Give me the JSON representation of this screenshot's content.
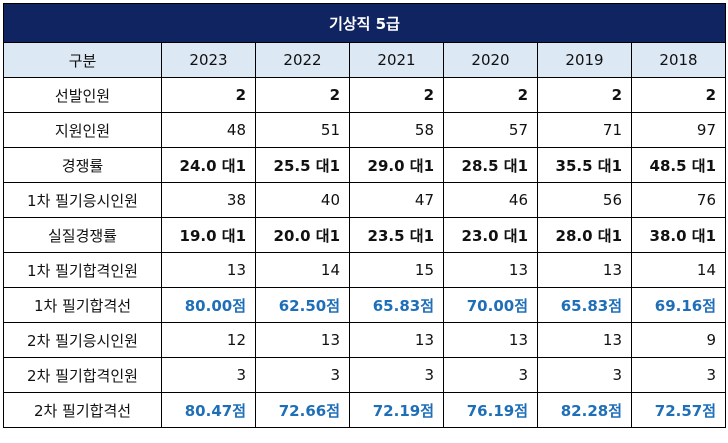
{
  "title": "기상직 5급",
  "header": {
    "label": "구분",
    "years": [
      "2023",
      "2022",
      "2021",
      "2020",
      "2019",
      "2018"
    ]
  },
  "rows": [
    {
      "label": "선발인원",
      "style": "bold",
      "values": [
        "2",
        "2",
        "2",
        "2",
        "2",
        "2"
      ]
    },
    {
      "label": "지원인원",
      "style": "plain",
      "values": [
        "48",
        "51",
        "58",
        "57",
        "71",
        "97"
      ]
    },
    {
      "label": "경쟁률",
      "style": "bold",
      "values": [
        "24.0 대1",
        "25.5 대1",
        "29.0 대1",
        "28.5 대1",
        "35.5 대1",
        "48.5 대1"
      ]
    },
    {
      "label": "1차 필기응시인원",
      "style": "plain",
      "values": [
        "38",
        "40",
        "47",
        "46",
        "56",
        "76"
      ]
    },
    {
      "label": "실질경쟁률",
      "style": "bold",
      "values": [
        "19.0 대1",
        "20.0 대1",
        "23.5 대1",
        "23.0 대1",
        "28.0 대1",
        "38.0 대1"
      ]
    },
    {
      "label": "1차 필기합격인원",
      "style": "plain",
      "values": [
        "13",
        "14",
        "15",
        "13",
        "13",
        "14"
      ]
    },
    {
      "label": "1차 필기합격선",
      "style": "blue",
      "values": [
        "80.00점",
        "62.50점",
        "65.83점",
        "70.00점",
        "65.83점",
        "69.16점"
      ]
    },
    {
      "label": "2차 필기응시인원",
      "style": "plain",
      "values": [
        "12",
        "13",
        "13",
        "13",
        "13",
        "9"
      ]
    },
    {
      "label": "2차 필기합격인원",
      "style": "plain",
      "values": [
        "3",
        "3",
        "3",
        "3",
        "3",
        "3"
      ]
    },
    {
      "label": "2차 필기합격선",
      "style": "blue",
      "values": [
        "80.47점",
        "72.66점",
        "72.19점",
        "76.19점",
        "82.28점",
        "72.57점"
      ]
    }
  ],
  "colors": {
    "title_bg": "#0f2461",
    "header_bg": "#dde8f5",
    "score_text": "#1f6fb8"
  }
}
